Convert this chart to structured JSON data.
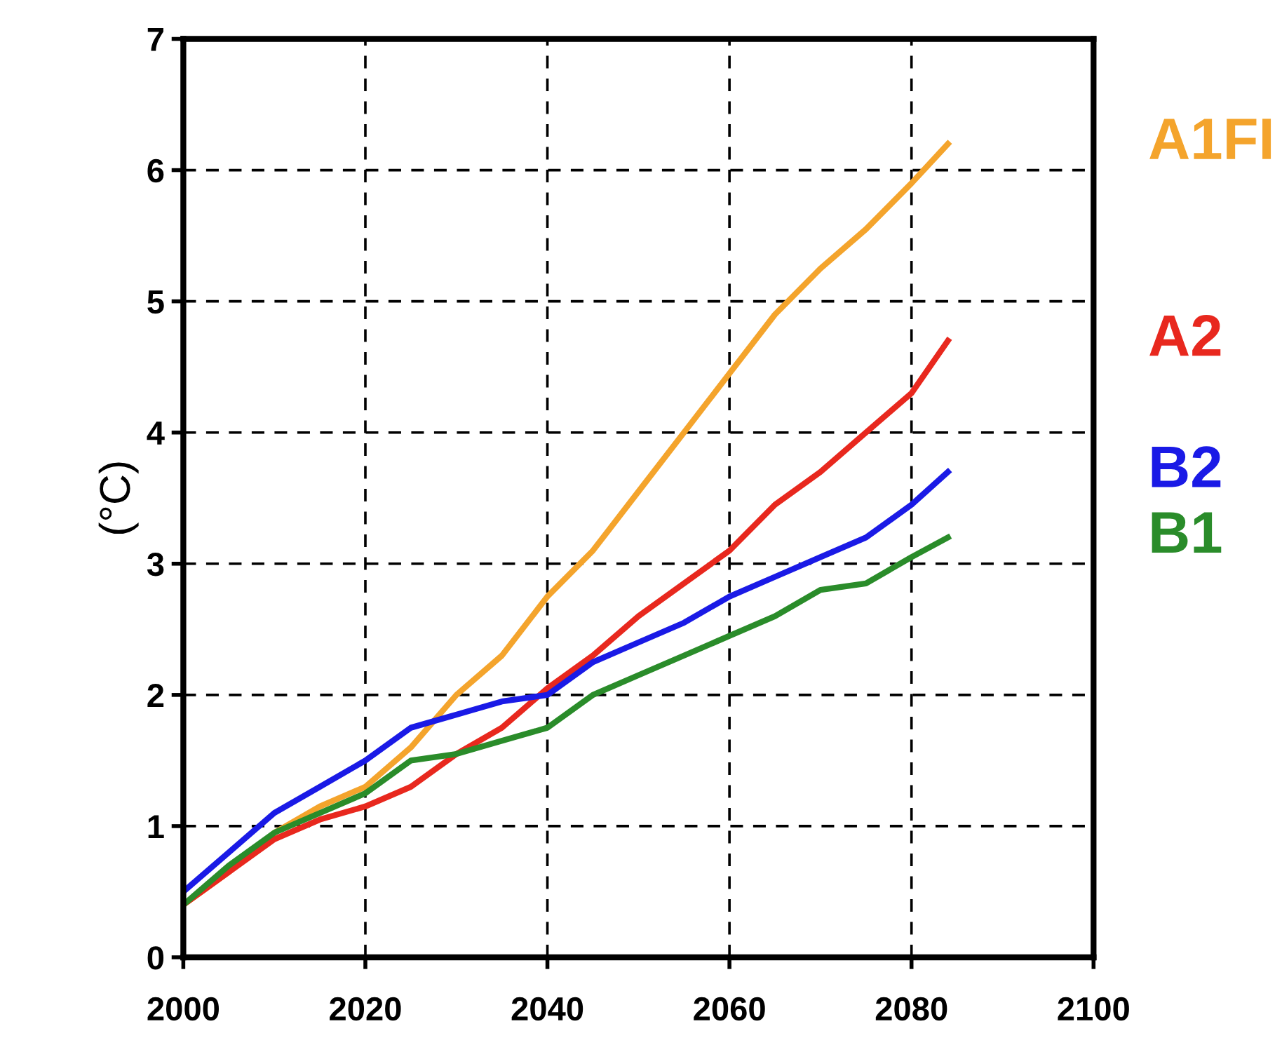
{
  "chart_data": {
    "type": "line",
    "ylabel": "(°C)",
    "xlim": [
      2000,
      2100
    ],
    "xticks": [
      2000,
      2020,
      2040,
      2060,
      2080,
      2100
    ],
    "ylim": [
      0,
      7
    ],
    "yticks": [
      0,
      1,
      2,
      3,
      4,
      5,
      6,
      7
    ],
    "grid": true,
    "legend": false,
    "line_style": "solid",
    "x": [
      2000,
      2005,
      2010,
      2015,
      2020,
      2025,
      2030,
      2035,
      2040,
      2045,
      2050,
      2055,
      2060,
      2065,
      2070,
      2075,
      2080,
      2084
    ],
    "series": [
      {
        "name": "A1FI",
        "color": "#f4a42c",
        "values": [
          0.4,
          0.65,
          0.95,
          1.15,
          1.3,
          1.6,
          2.0,
          2.3,
          2.75,
          3.1,
          3.55,
          4.0,
          4.45,
          4.9,
          5.25,
          5.55,
          5.9,
          6.2
        ]
      },
      {
        "name": "A2",
        "color": "#e8281e",
        "values": [
          0.4,
          0.65,
          0.9,
          1.05,
          1.15,
          1.3,
          1.55,
          1.75,
          2.05,
          2.3,
          2.6,
          2.85,
          3.1,
          3.45,
          3.7,
          4.0,
          4.3,
          4.7
        ]
      },
      {
        "name": "B2",
        "color": "#1a1ae6",
        "values": [
          0.5,
          0.8,
          1.1,
          1.3,
          1.5,
          1.75,
          1.85,
          1.95,
          2.0,
          2.25,
          2.4,
          2.55,
          2.75,
          2.9,
          3.05,
          3.2,
          3.45,
          3.7
        ]
      },
      {
        "name": "B1",
        "color": "#2a8c2a",
        "values": [
          0.4,
          0.7,
          0.95,
          1.1,
          1.25,
          1.5,
          1.55,
          1.65,
          1.75,
          2.0,
          2.15,
          2.3,
          2.45,
          2.6,
          2.8,
          2.85,
          3.05,
          3.2
        ]
      }
    ]
  }
}
